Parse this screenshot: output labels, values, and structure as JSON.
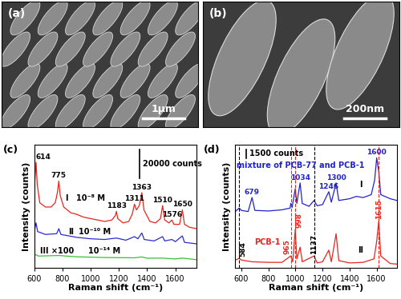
{
  "images": [
    {
      "panel_label": "(a)",
      "scale_bar": "1μm"
    },
    {
      "panel_label": "(b)",
      "scale_bar": "200nm"
    }
  ],
  "chart_data": [
    {
      "type": "line",
      "panel_label": "(c)",
      "x_label": "Raman shift (cm⁻¹)",
      "y_label": "Intensity (counts)",
      "xlim": [
        600,
        1750
      ],
      "xticks": [
        600,
        800,
        1000,
        1200,
        1400,
        1600
      ],
      "ylim": [
        0,
        85000
      ],
      "tick_labels": "x",
      "scale_bar": {
        "value": 20000,
        "label": "20000 counts"
      },
      "series": [
        {
          "name": "I",
          "concentration": "10⁻⁸ M",
          "color": "#e8261c",
          "x": [
            600,
            605,
            614,
            622,
            640,
            680,
            720,
            750,
            765,
            775,
            785,
            810,
            860,
            900,
            950,
            1000,
            1050,
            1100,
            1150,
            1175,
            1183,
            1192,
            1230,
            1270,
            1295,
            1311,
            1325,
            1345,
            1363,
            1378,
            1420,
            1460,
            1495,
            1510,
            1525,
            1555,
            1576,
            1590,
            1630,
            1650,
            1665,
            1700,
            1750
          ],
          "values": [
            52000,
            60000,
            73000,
            58000,
            45000,
            42000,
            42000,
            45000,
            52000,
            60000,
            50000,
            42000,
            38000,
            37000,
            35000,
            34000,
            33000,
            32000,
            33000,
            36000,
            39000,
            34000,
            31000,
            32000,
            37000,
            44000,
            40000,
            43000,
            52000,
            40000,
            32000,
            31000,
            34000,
            43000,
            33000,
            31000,
            33000,
            30000,
            30000,
            40000,
            30000,
            28000,
            27000
          ]
        },
        {
          "name": "II",
          "concentration": "10⁻¹⁰ M",
          "color": "#2b2bd6",
          "x": [
            600,
            614,
            625,
            680,
            760,
            775,
            790,
            900,
            1000,
            1100,
            1183,
            1250,
            1311,
            1335,
            1363,
            1380,
            1450,
            1510,
            1525,
            1576,
            1600,
            1650,
            1665,
            1750
          ],
          "values": [
            24500,
            31000,
            25000,
            23000,
            23500,
            27000,
            23000,
            21000,
            20000,
            19500,
            20500,
            19000,
            21500,
            20000,
            24000,
            19500,
            18500,
            21500,
            18500,
            19500,
            18000,
            22000,
            17500,
            16500
          ]
        },
        {
          "name": "III ×100",
          "concentration": "10⁻¹⁴ M",
          "color": "#36c236",
          "x": [
            600,
            614,
            630,
            775,
            900,
            1100,
            1311,
            1363,
            1400,
            1510,
            1600,
            1650,
            1750
          ],
          "values": [
            8200,
            9000,
            8000,
            8400,
            7500,
            7000,
            6800,
            7400,
            6500,
            6600,
            6000,
            6600,
            5500
          ]
        }
      ],
      "peak_labels": [
        {
          "value": 614
        },
        {
          "value": 775
        },
        {
          "value": 1183
        },
        {
          "value": 1311
        },
        {
          "value": 1363
        },
        {
          "value": 1510
        },
        {
          "value": 1576
        },
        {
          "value": 1650
        }
      ]
    },
    {
      "type": "line",
      "panel_label": "(d)",
      "x_label": "Raman shift (cm⁻¹)",
      "y_label": "Intensity (counts)",
      "xlim": [
        550,
        1750
      ],
      "xticks": [
        600,
        800,
        1000,
        1200,
        1400,
        1600
      ],
      "ylim": [
        0,
        21000
      ],
      "tick_labels": "x",
      "scale_bar": {
        "value": 1500,
        "label": "1500 counts"
      },
      "series": [
        {
          "name": "I",
          "description": "mixture of PCB-77 and PCB-1",
          "color": "#2222cc",
          "x": [
            550,
            584,
            600,
            650,
            679,
            700,
            800,
            900,
            960,
            965,
            975,
            998,
            1010,
            1034,
            1050,
            1100,
            1137,
            1160,
            1200,
            1246,
            1265,
            1300,
            1320,
            1400,
            1450,
            1500,
            1560,
            1585,
            1600,
            1615,
            1630,
            1700,
            1750
          ],
          "values": [
            9500,
            10200,
            9800,
            9600,
            12000,
            9800,
            9700,
            9900,
            10200,
            11000,
            10300,
            13500,
            11000,
            14500,
            11000,
            10500,
            11500,
            10600,
            10800,
            13000,
            11200,
            14500,
            11500,
            11800,
            12200,
            12000,
            12500,
            15000,
            18800,
            16500,
            12500,
            11800,
            11500
          ]
        },
        {
          "name": "II",
          "description": "PCB-1",
          "color": "#e8261c",
          "x": [
            550,
            584,
            600,
            679,
            800,
            900,
            965,
            980,
            998,
            1010,
            1034,
            1050,
            1137,
            1160,
            1200,
            1246,
            1265,
            1300,
            1320,
            1400,
            1500,
            1580,
            1600,
            1615,
            1630,
            1700,
            1750
          ],
          "values": [
            1200,
            1600,
            1300,
            1000,
            900,
            900,
            2000,
            1000,
            6500,
            1500,
            3500,
            1000,
            2000,
            800,
            1000,
            3000,
            1000,
            5800,
            1200,
            800,
            900,
            1500,
            4500,
            8000,
            2000,
            700,
            600
          ]
        }
      ],
      "peak_labels": [
        {
          "value": 584,
          "color": "#000000"
        },
        {
          "value": 679,
          "color": "#2222cc"
        },
        {
          "value": 965,
          "color": "#e8261c"
        },
        {
          "value": 998,
          "color": "#e8261c"
        },
        {
          "value": 1034,
          "color": "#2222cc"
        },
        {
          "value": 1137,
          "color": "#000000"
        },
        {
          "value": 1246,
          "color": "#2222cc"
        },
        {
          "value": 1300,
          "color": "#2222cc"
        },
        {
          "value": 1600,
          "color": "#2222cc"
        },
        {
          "value": 1615,
          "color": "#e8261c"
        }
      ],
      "reference_lines": [
        {
          "x": 584,
          "color": "#000000"
        },
        {
          "x": 965,
          "color": "#e8261c"
        },
        {
          "x": 998,
          "color": "#e8261c"
        },
        {
          "x": 1137,
          "color": "#000000"
        },
        {
          "x": 1615,
          "color": "#e8261c"
        }
      ]
    }
  ]
}
